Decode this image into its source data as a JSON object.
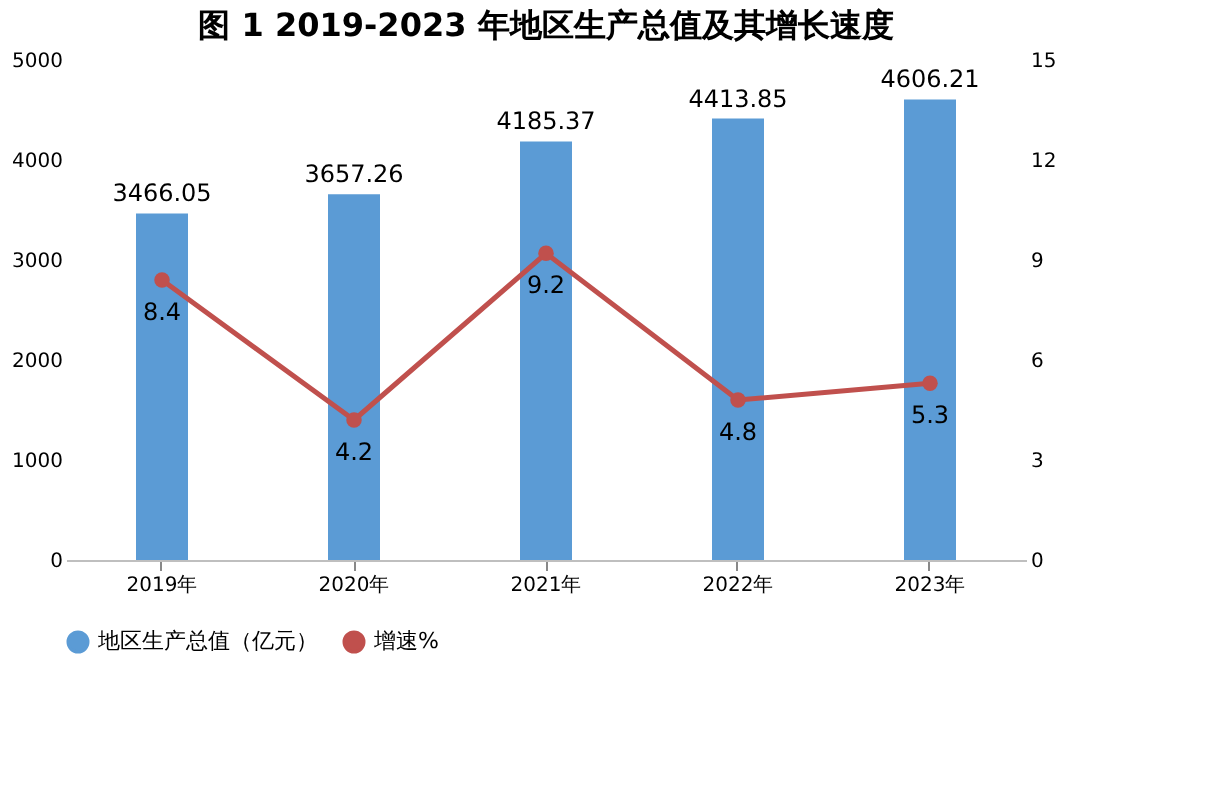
{
  "chart_data": {
    "type": "bar",
    "title": "图 1   2019-2023 年地区生产总值及其增长速度",
    "categories": [
      "2019年",
      "2020年",
      "2021年",
      "2022年",
      "2023年"
    ],
    "series": [
      {
        "name": "地区生产总值（亿元）",
        "color": "#5b9bd5",
        "values": [
          3466.05,
          3657.26,
          4185.37,
          4413.85,
          4606.21
        ]
      },
      {
        "name": "增速%",
        "type": "line",
        "axis": "y2",
        "color": "#c0504d",
        "values": [
          8.4,
          4.2,
          9.2,
          4.8,
          5.3
        ]
      }
    ],
    "ylim": [
      0,
      5000
    ],
    "yticks": [
      0,
      1000,
      2000,
      3000,
      4000,
      5000
    ],
    "y2lim": [
      0,
      15
    ],
    "y2ticks": [
      0,
      3,
      6,
      9,
      12,
      15
    ],
    "data_labels": true,
    "marker": "circle",
    "grid": false,
    "legend": "bottom"
  }
}
